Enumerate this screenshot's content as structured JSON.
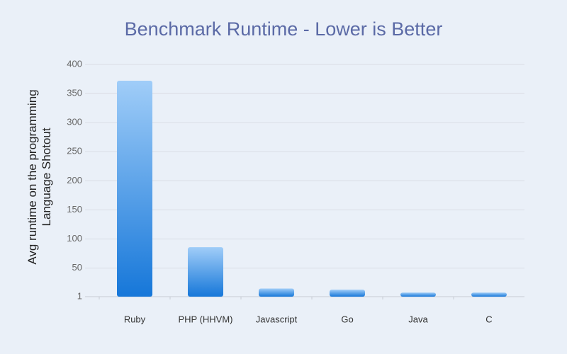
{
  "chart_data": {
    "type": "bar",
    "title": "Benchmark Runtime - Lower is Better",
    "y_label": "Avg runtime on the programming Language Shotout",
    "categories": [
      "Ruby",
      "PHP (HHVM)",
      "Javascript",
      "Go",
      "Java",
      "C"
    ],
    "values": [
      372,
      86,
      15,
      13,
      8,
      8
    ],
    "gradient": [
      "#a0cdf8",
      "#1677d9"
    ],
    "ylim": [
      1,
      400
    ],
    "yticks": [
      1,
      50,
      100,
      150,
      200,
      250,
      300,
      350,
      400
    ],
    "grid": true
  }
}
